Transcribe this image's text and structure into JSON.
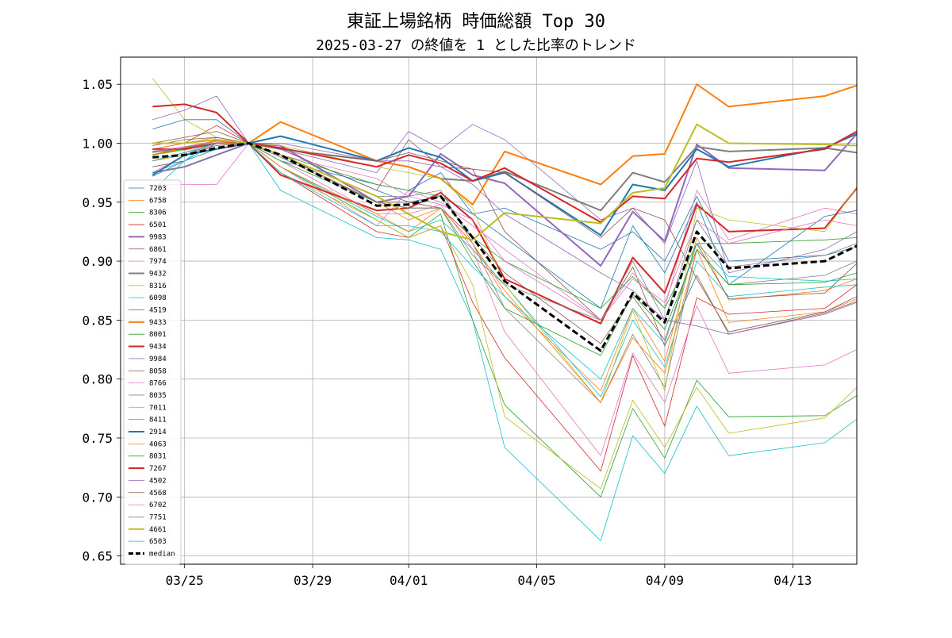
{
  "chart_data": {
    "type": "line",
    "title": "東証上場銘柄 時価総額 Top 30",
    "subtitle": "2025-03-27 の終値を 1 とした比率のトレンド",
    "xlabel": "",
    "ylabel": "",
    "ylim": [
      0.643,
      1.073
    ],
    "xlim": [
      "2025-03-23",
      "2025-04-15"
    ],
    "grid": true,
    "legend_position": "center-left",
    "x_ticks": [
      {
        "date": "2025-03-25",
        "label": "03/25"
      },
      {
        "date": "2025-03-29",
        "label": "03/29"
      },
      {
        "date": "2025-04-01",
        "label": "04/01"
      },
      {
        "date": "2025-04-05",
        "label": "04/05"
      },
      {
        "date": "2025-04-09",
        "label": "04/09"
      },
      {
        "date": "2025-04-13",
        "label": "04/13"
      }
    ],
    "y_ticks": [
      "0.65",
      "0.70",
      "0.75",
      "0.80",
      "0.85",
      "0.90",
      "0.95",
      "1.00",
      "1.05"
    ],
    "dates": [
      "2025-03-24",
      "2025-03-25",
      "2025-03-26",
      "2025-03-27",
      "2025-03-28",
      "2025-03-31",
      "2025-04-01",
      "2025-04-02",
      "2025-04-03",
      "2025-04-04",
      "2025-04-07",
      "2025-04-08",
      "2025-04-09",
      "2025-04-10",
      "2025-04-11",
      "2025-04-14",
      "2025-04-15"
    ],
    "series": [
      {
        "name": "7203",
        "color": "#1f77b4",
        "bold": false,
        "values": [
          0.972,
          0.985,
          1.0,
          1.0,
          0.995,
          0.96,
          0.95,
          0.955,
          0.94,
          0.945,
          0.91,
          0.925,
          0.9,
          0.955,
          0.9,
          0.905,
          0.912
        ]
      },
      {
        "name": "6758",
        "color": "#ff7f0e",
        "bold": false,
        "values": [
          0.985,
          0.99,
          0.998,
          1.0,
          0.99,
          0.95,
          0.935,
          0.945,
          0.915,
          0.87,
          0.79,
          0.86,
          0.815,
          0.92,
          0.867,
          0.875,
          0.885
        ]
      },
      {
        "name": "8306",
        "color": "#2ca02c",
        "bold": false,
        "values": [
          0.985,
          0.992,
          1.0,
          1.0,
          0.98,
          0.935,
          0.92,
          0.94,
          0.85,
          0.778,
          0.7,
          0.775,
          0.733,
          0.799,
          0.768,
          0.769,
          0.786
        ]
      },
      {
        "name": "6501",
        "color": "#d62728",
        "bold": false,
        "values": [
          0.995,
          1.0,
          1.015,
          1.0,
          0.975,
          0.925,
          0.92,
          0.93,
          0.865,
          0.818,
          0.722,
          0.82,
          0.76,
          0.869,
          0.855,
          0.86,
          0.88
        ]
      },
      {
        "name": "9983",
        "color": "#9467bd",
        "bold": true,
        "values": [
          0.975,
          0.98,
          0.99,
          1.0,
          0.998,
          0.95,
          0.955,
          0.991,
          0.973,
          0.966,
          0.896,
          0.942,
          0.917,
          0.999,
          0.979,
          0.977,
          1.008
        ]
      },
      {
        "name": "6861",
        "color": "#8c564b",
        "bold": false,
        "values": [
          0.98,
          0.985,
          0.995,
          1.0,
          0.995,
          0.96,
          1.003,
          0.98,
          0.978,
          0.925,
          0.85,
          0.895,
          0.828,
          0.888,
          0.838,
          0.856,
          0.866
        ]
      },
      {
        "name": "7974",
        "color": "#e377c2",
        "bold": false,
        "values": [
          0.965,
          0.965,
          0.965,
          1.0,
          0.98,
          0.93,
          0.96,
          0.95,
          0.93,
          0.91,
          0.85,
          0.89,
          0.86,
          0.96,
          0.918,
          0.945,
          0.94
        ]
      },
      {
        "name": "9432",
        "color": "#7f7f7f",
        "bold": true,
        "values": [
          0.993,
          0.995,
          1.0,
          1.0,
          0.995,
          0.985,
          0.98,
          0.97,
          0.968,
          0.976,
          0.943,
          0.975,
          0.967,
          0.997,
          0.993,
          0.996,
          0.992
        ]
      },
      {
        "name": "8316",
        "color": "#bcbd22",
        "bold": false,
        "values": [
          1.055,
          1.02,
          1.005,
          1.0,
          0.975,
          0.935,
          0.92,
          0.93,
          0.88,
          0.768,
          0.707,
          0.782,
          0.742,
          0.793,
          0.754,
          0.767,
          0.793
        ]
      },
      {
        "name": "6098",
        "color": "#17becf",
        "bold": false,
        "values": [
          0.96,
          0.985,
          1.005,
          1.0,
          0.98,
          0.938,
          0.925,
          0.935,
          0.91,
          0.88,
          0.785,
          0.85,
          0.81,
          0.9,
          0.87,
          0.878,
          0.88
        ]
      },
      {
        "name": "4519",
        "color": "#1f77b4",
        "bold": false,
        "values": [
          1.012,
          1.02,
          1.02,
          1.0,
          0.985,
          0.965,
          0.96,
          0.975,
          0.94,
          0.92,
          0.86,
          0.93,
          0.89,
          0.95,
          0.88,
          0.938,
          0.943
        ]
      },
      {
        "name": "9433",
        "color": "#ff7f0e",
        "bold": true,
        "values": [
          0.99,
          0.996,
          1.002,
          1.0,
          1.018,
          0.985,
          0.98,
          0.97,
          0.948,
          0.993,
          0.965,
          0.989,
          0.991,
          1.05,
          1.031,
          1.04,
          1.049
        ]
      },
      {
        "name": "8001",
        "color": "#2ca02c",
        "bold": false,
        "values": [
          0.99,
          0.995,
          1.0,
          1.0,
          0.99,
          0.965,
          0.96,
          0.955,
          0.92,
          0.9,
          0.86,
          0.887,
          0.86,
          0.915,
          0.915,
          0.918,
          0.92
        ]
      },
      {
        "name": "9434",
        "color": "#d62728",
        "bold": true,
        "values": [
          1.031,
          1.033,
          1.026,
          1.0,
          0.973,
          0.943,
          0.945,
          0.958,
          0.935,
          0.885,
          0.847,
          0.903,
          0.873,
          0.948,
          0.925,
          0.928,
          0.962
        ]
      },
      {
        "name": "9984",
        "color": "#9467bd",
        "bold": false,
        "values": [
          1.02,
          1.028,
          1.04,
          1.0,
          0.995,
          0.975,
          1.01,
          0.995,
          1.016,
          1.003,
          0.935,
          0.945,
          0.915,
          0.985,
          0.89,
          0.91,
          0.925
        ]
      },
      {
        "name": "8058",
        "color": "#8c564b",
        "bold": false,
        "values": [
          1.0,
          1.005,
          1.01,
          1.0,
          0.99,
          0.95,
          0.95,
          0.945,
          0.92,
          0.89,
          0.83,
          0.87,
          0.833,
          0.915,
          0.868,
          0.873,
          0.898
        ]
      },
      {
        "name": "8766",
        "color": "#e377c2",
        "bold": false,
        "values": [
          0.975,
          0.99,
          1.0,
          1.0,
          0.985,
          0.94,
          0.94,
          0.948,
          0.91,
          0.84,
          0.735,
          0.822,
          0.78,
          0.862,
          0.805,
          0.812,
          0.825
        ]
      },
      {
        "name": "8035",
        "color": "#7f7f7f",
        "bold": false,
        "values": [
          0.975,
          0.98,
          0.99,
          1.0,
          0.99,
          0.955,
          0.955,
          0.96,
          0.915,
          0.86,
          0.78,
          0.838,
          0.793,
          0.91,
          0.88,
          0.888,
          0.9
        ]
      },
      {
        "name": "7011",
        "color": "#bcbd22",
        "bold": false,
        "values": [
          0.99,
          0.994,
          1.0,
          1.0,
          0.998,
          0.98,
          0.975,
          0.97,
          0.945,
          0.88,
          0.78,
          0.858,
          0.79,
          0.945,
          0.935,
          0.925,
          0.963
        ]
      },
      {
        "name": "8411",
        "color": "#17becf",
        "bold": false,
        "values": [
          0.975,
          0.985,
          0.995,
          1.0,
          0.96,
          0.92,
          0.918,
          0.91,
          0.85,
          0.742,
          0.663,
          0.752,
          0.72,
          0.777,
          0.735,
          0.746,
          0.766
        ]
      },
      {
        "name": "2914",
        "color": "#1f77b4",
        "bold": true,
        "values": [
          0.973,
          0.99,
          0.995,
          1.0,
          1.006,
          0.985,
          0.996,
          0.988,
          0.968,
          0.975,
          0.922,
          0.965,
          0.96,
          0.995,
          0.98,
          0.996,
          1.008
        ]
      },
      {
        "name": "4063",
        "color": "#ff7f0e",
        "bold": false,
        "values": [
          0.995,
          1.0,
          1.005,
          1.0,
          0.98,
          0.94,
          0.925,
          0.945,
          0.915,
          0.875,
          0.78,
          0.835,
          0.805,
          0.91,
          0.848,
          0.857,
          0.868
        ]
      },
      {
        "name": "8031",
        "color": "#2ca02c",
        "bold": false,
        "values": [
          0.993,
          0.997,
          1.0,
          1.0,
          0.985,
          0.95,
          0.945,
          0.945,
          0.9,
          0.86,
          0.82,
          0.872,
          0.842,
          0.91,
          0.88,
          0.882,
          0.89
        ]
      },
      {
        "name": "7267",
        "color": "#d62728",
        "bold": true,
        "values": [
          0.995,
          0.995,
          1.0,
          1.0,
          0.996,
          0.98,
          0.99,
          0.983,
          0.968,
          0.979,
          0.933,
          0.955,
          0.953,
          0.987,
          0.984,
          0.995,
          1.01
        ]
      },
      {
        "name": "4502",
        "color": "#9467bd",
        "bold": false,
        "values": [
          0.992,
          0.996,
          1.0,
          1.0,
          1.0,
          0.985,
          0.985,
          0.98,
          0.965,
          0.94,
          0.89,
          0.875,
          0.85,
          0.845,
          0.838,
          0.855,
          0.865
        ]
      },
      {
        "name": "4568",
        "color": "#8c564b",
        "bold": false,
        "values": [
          0.998,
          1.003,
          1.005,
          1.0,
          0.995,
          0.985,
          0.992,
          0.985,
          0.978,
          0.975,
          0.92,
          0.945,
          0.935,
          0.885,
          0.84,
          0.857,
          0.87
        ]
      },
      {
        "name": "6702",
        "color": "#e377c2",
        "bold": false,
        "values": [
          0.993,
          0.997,
          1.002,
          1.0,
          0.99,
          0.97,
          0.955,
          0.948,
          0.935,
          0.9,
          0.85,
          0.885,
          0.865,
          0.935,
          0.915,
          0.935,
          0.93
        ]
      },
      {
        "name": "7751",
        "color": "#7f7f7f",
        "bold": false,
        "values": [
          0.985,
          0.992,
          0.998,
          1.0,
          0.988,
          0.95,
          0.945,
          0.945,
          0.905,
          0.88,
          0.85,
          0.9,
          0.85,
          0.935,
          0.895,
          0.905,
          0.915
        ]
      },
      {
        "name": "4661",
        "color": "#bcbd22",
        "bold": true,
        "values": [
          1.0,
          1.0,
          1.003,
          1.0,
          0.99,
          0.955,
          0.94,
          0.925,
          0.918,
          0.941,
          0.932,
          0.958,
          0.962,
          1.016,
          1.0,
          0.999,
          0.998
        ]
      },
      {
        "name": "6503",
        "color": "#17becf",
        "bold": false,
        "values": [
          0.985,
          0.992,
          1.0,
          1.0,
          0.975,
          0.93,
          0.93,
          0.925,
          0.895,
          0.87,
          0.8,
          0.86,
          0.83,
          0.915,
          0.887,
          0.883,
          0.885
        ]
      },
      {
        "name": "median",
        "color": "#000000",
        "bold": true,
        "dashed": true,
        "values": [
          0.988,
          0.99,
          0.996,
          1.0,
          0.99,
          0.947,
          0.948,
          0.955,
          0.92,
          0.883,
          0.824,
          0.873,
          0.848,
          0.925,
          0.894,
          0.9,
          0.913
        ]
      }
    ]
  }
}
